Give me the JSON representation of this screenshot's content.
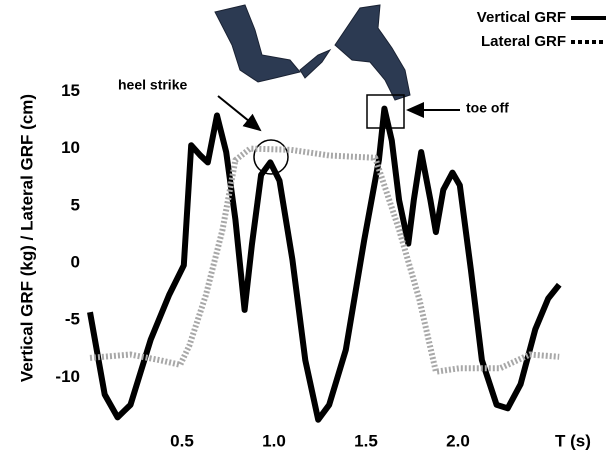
{
  "chart_data": {
    "type": "line",
    "xlabel": "T (s)",
    "ylabel": "Vertical GRF (kg) / Lateral GRF (cm)",
    "xlim": [
      0,
      2.55
    ],
    "ylim": [
      -14.6,
      16
    ],
    "xticks": [
      0.5,
      {
        "value": 1.0,
        "label": "1.0"
      },
      1.5,
      {
        "value": 2.0,
        "label": "2.0"
      }
    ],
    "yticks": [
      15,
      10,
      5,
      0,
      -5,
      -10
    ],
    "grid": false,
    "legend": "top-right",
    "annotations": [
      "heel strike",
      "toe off"
    ],
    "series": [
      {
        "name": "Vertical GRF",
        "color": "#000000",
        "style": "solid",
        "x": [
          0,
          0.08,
          0.15,
          0.22,
          0.33,
          0.43,
          0.51,
          0.55,
          0.6,
          0.64,
          0.69,
          0.74,
          0.79,
          0.84,
          0.88,
          0.93,
          0.98,
          1.03,
          1.1,
          1.17,
          1.24,
          1.3,
          1.39,
          1.49,
          1.57,
          1.6,
          1.64,
          1.68,
          1.73,
          1.76,
          1.8,
          1.85,
          1.88,
          1.92,
          1.97,
          2.01,
          2.07,
          2.13,
          2.21,
          2.27,
          2.34,
          2.42,
          2.49,
          2.55
        ],
        "values": [
          -4.3,
          -11.5,
          -13.5,
          -12.4,
          -6.7,
          -2.8,
          -0.2,
          10.3,
          9.4,
          8.8,
          12.9,
          9.7,
          3.8,
          -4.1,
          1.6,
          7.7,
          8.8,
          7.2,
          0.3,
          -8.5,
          -13.7,
          -12.4,
          -7.6,
          2.0,
          9.0,
          13.5,
          10.7,
          5.5,
          1.7,
          5.5,
          9.7,
          5.5,
          2.7,
          6.4,
          7.9,
          6.8,
          -0.6,
          -8.5,
          -12.4,
          -12.7,
          -10.6,
          -5.8,
          -3.1,
          -1.9
        ]
      },
      {
        "name": "Lateral GRF",
        "color": "#a8a8a8",
        "style": "dotted",
        "x": [
          0,
          0.22,
          0.38,
          0.49,
          0.54,
          0.63,
          0.72,
          0.79,
          0.87,
          1.09,
          1.3,
          1.55,
          1.68,
          1.79,
          1.88,
          2.01,
          2.23,
          2.39,
          2.55
        ],
        "values": [
          -8.3,
          -8.0,
          -8.5,
          -8.9,
          -7.2,
          -2.8,
          2.9,
          9.0,
          10.0,
          9.9,
          9.4,
          9.2,
          2.9,
          -3.2,
          -9.5,
          -9.2,
          -9.2,
          -8.0,
          -8.2
        ]
      }
    ]
  }
}
